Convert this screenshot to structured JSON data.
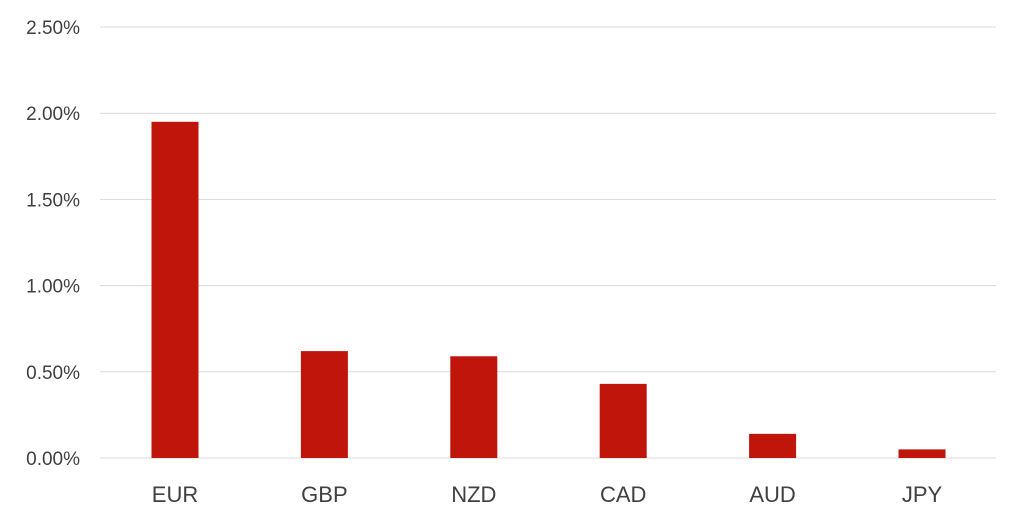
{
  "chart_data": {
    "type": "bar",
    "categories": [
      "EUR",
      "GBP",
      "NZD",
      "CAD",
      "AUD",
      "JPY"
    ],
    "values": [
      1.95,
      0.62,
      0.59,
      0.43,
      0.14,
      0.05
    ],
    "unit": "%",
    "ylim": [
      0,
      2.5
    ],
    "yticks": [
      "0.00%",
      "0.50%",
      "1.00%",
      "1.50%",
      "2.00%",
      "2.50%"
    ],
    "ytick_values": [
      0,
      0.5,
      1.0,
      1.5,
      2.0,
      2.5
    ],
    "grid": true,
    "legend": "none",
    "colors": {
      "bar": "#c0150a"
    }
  }
}
